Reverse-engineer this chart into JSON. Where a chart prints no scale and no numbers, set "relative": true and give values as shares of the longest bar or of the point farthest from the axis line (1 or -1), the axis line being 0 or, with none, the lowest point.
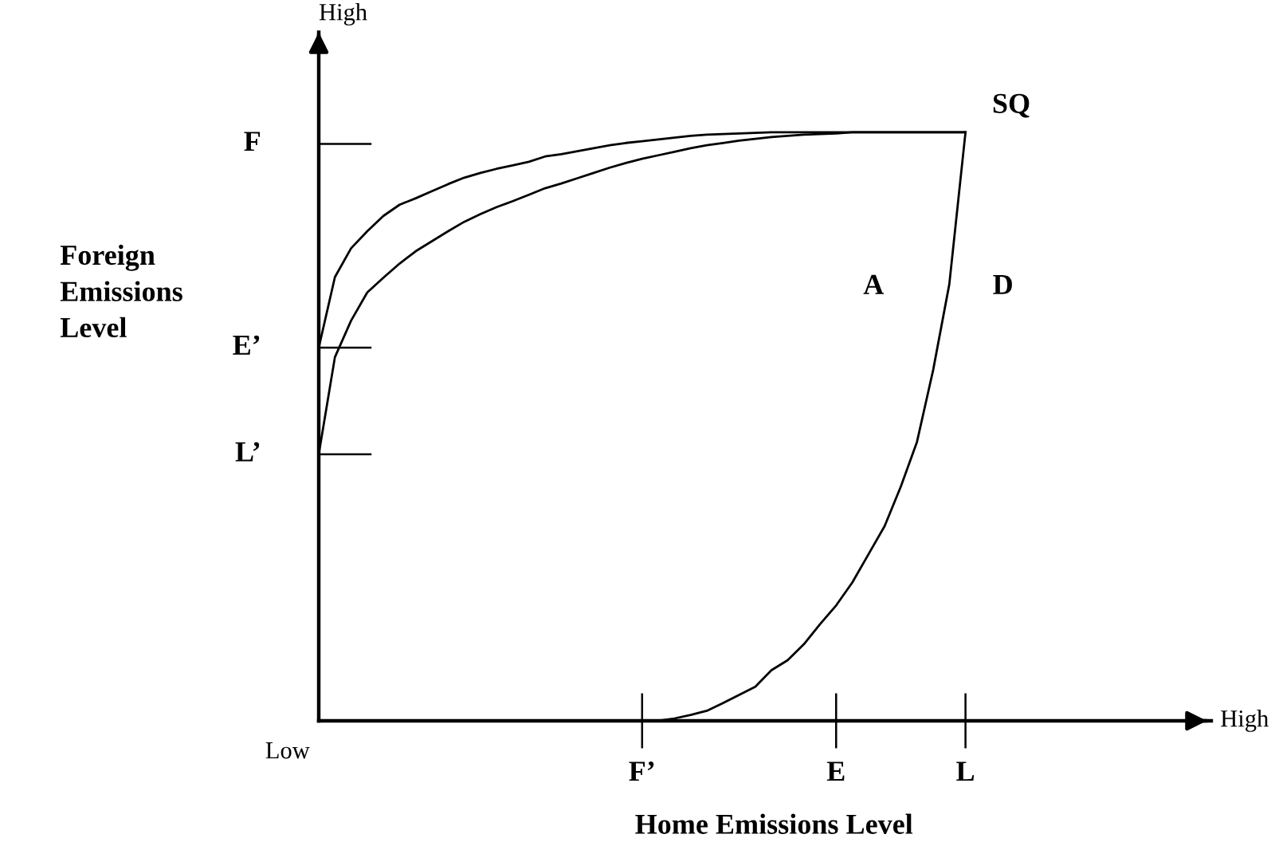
{
  "chart_data": {
    "type": "line",
    "relative": true,
    "xlabel": "Home Emissions Level",
    "ylabel": "Foreign\nEmissions\nLevel",
    "categories": [
      null,
      null,
      null,
      null,
      null,
      null,
      null,
      null,
      null,
      null,
      null,
      null,
      null,
      null,
      null,
      null,
      null,
      null,
      null,
      null,
      "F’",
      null,
      null,
      null,
      null,
      null,
      null,
      null,
      null,
      null,
      null,
      null,
      "E",
      null,
      null,
      null,
      null,
      null,
      null,
      null,
      "L",
      null,
      null,
      null,
      null,
      null,
      null,
      null,
      null,
      null,
      null,
      null,
      null,
      null,
      null,
      null
    ],
    "grid": false,
    "legend": false,
    "marker": "none",
    "line_style": "solid",
    "series": [
      {
        "color": "#000000",
        "values": [
          0.634,
          0.754,
          0.803,
          0.832,
          0.858,
          0.877,
          0.888,
          0.9,
          0.912,
          0.923,
          0.931,
          0.938,
          0.944,
          0.95,
          0.959,
          0.963,
          0.968,
          0.973,
          0.978,
          0.982,
          0.985,
          0.988,
          0.991,
          0.994,
          0.996,
          0.997,
          0.998,
          0.999,
          1,
          1,
          1,
          1,
          1,
          1,
          1,
          1,
          1,
          1,
          1,
          1,
          1,
          null,
          null,
          null,
          null,
          null,
          null,
          null,
          null,
          null,
          null,
          null,
          null,
          null,
          null,
          null
        ]
      },
      {
        "color": "#000000",
        "values": [
          0.453,
          0.618,
          0.68,
          0.728,
          0.753,
          0.777,
          0.798,
          0.815,
          0.832,
          0.848,
          0.861,
          0.873,
          0.883,
          0.894,
          0.905,
          0.913,
          0.922,
          0.931,
          0.94,
          0.948,
          0.955,
          0.961,
          0.967,
          0.973,
          0.978,
          0.982,
          0.986,
          0.989,
          0.992,
          0.994,
          0.996,
          0.997,
          0.998,
          1,
          1,
          1,
          1,
          1,
          1,
          1,
          1,
          null,
          null,
          null,
          null,
          null,
          null,
          null,
          null,
          null,
          null,
          null,
          null,
          null,
          null,
          null
        ]
      },
      {
        "color": "#000000",
        "values": [
          null,
          null,
          null,
          null,
          null,
          null,
          null,
          null,
          null,
          null,
          null,
          null,
          null,
          null,
          null,
          null,
          null,
          null,
          null,
          null,
          0,
          0,
          0.004,
          0.01,
          0.017,
          0.03,
          0.044,
          0.058,
          0.086,
          0.103,
          0.13,
          0.164,
          0.196,
          0.235,
          0.283,
          0.331,
          0.398,
          0.474,
          0.596,
          0.742,
          1,
          null,
          null,
          null,
          null,
          null,
          null,
          null,
          null,
          null,
          null,
          null,
          null,
          null,
          null,
          null
        ]
      }
    ],
    "annotations": [
      {
        "text": "SQ",
        "x": "L",
        "y": 1
      },
      "A",
      "D",
      "High",
      "Low",
      "High",
      "F",
      "E’",
      "L’"
    ]
  }
}
